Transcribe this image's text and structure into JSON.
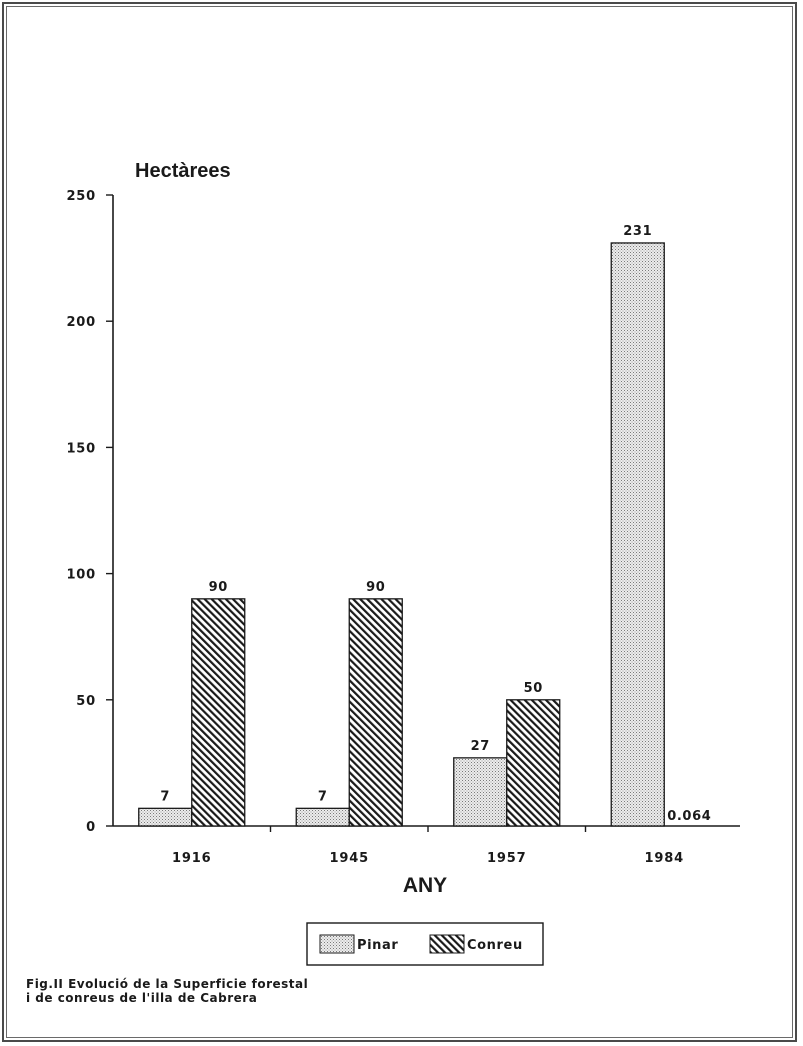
{
  "chart_data": {
    "type": "bar",
    "ylabel": "Hectàrees",
    "xlabel": "ANY",
    "categories": [
      "1916",
      "1945",
      "1957",
      "1984"
    ],
    "series": [
      {
        "name": "Pinar",
        "values": [
          7,
          7,
          27,
          231
        ],
        "value_labels": [
          "7",
          "7",
          "27",
          "231"
        ],
        "pattern": "dotted"
      },
      {
        "name": "Conreu",
        "values": [
          90,
          90,
          50,
          0.064
        ],
        "value_labels": [
          "90",
          "90",
          "50",
          "0.064"
        ],
        "pattern": "hatched"
      }
    ],
    "ylim": [
      0,
      250
    ],
    "yticks": [
      0,
      50,
      100,
      150,
      200,
      250
    ],
    "grid": false,
    "legend_position": "bottom-center"
  },
  "caption": {
    "line1": "Fig.II Evolució de la Superficie forestal",
    "line2": "i de conreus de l'illa de Cabrera"
  },
  "colors": {
    "ink": "#1a1a1a",
    "dot_fill": "#e8e8e8",
    "hatch_fill": "#ffffff"
  }
}
